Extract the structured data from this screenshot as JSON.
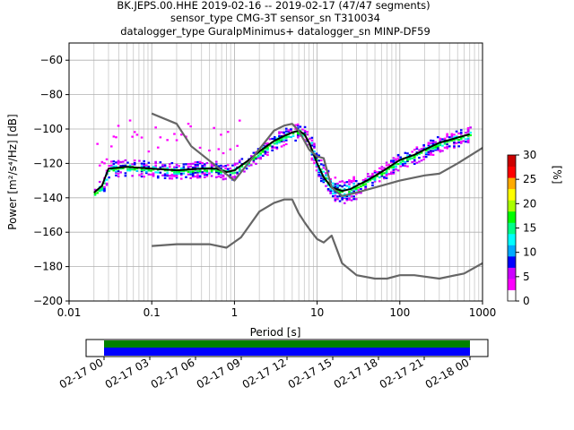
{
  "title": {
    "line1": "BK.JEPS.00.HHE   2019-02-16 -- 2019-02-17  (47/47 segments)",
    "line2": "sensor_type CMG-3T sensor_sn T310034",
    "line3": "datalogger_type GuralpMinimus+ datalogger_sn MINP-DF59"
  },
  "chart_data": {
    "type": "heatmap",
    "xlabel": "Period [s]",
    "ylabel": "Power [m²/s⁴/Hz] [dB]",
    "xscale": "log",
    "xlim": [
      0.01,
      1000
    ],
    "ylim": [
      -200,
      -50
    ],
    "xticks": [
      "0.01",
      "0.1",
      "1",
      "10",
      "100",
      "1000"
    ],
    "yticks": [
      "−60",
      "−80",
      "−100",
      "−120",
      "−140",
      "−160",
      "−180",
      "−200"
    ],
    "grid": true,
    "colorbar": {
      "label": "[%]",
      "ticks": [
        "0",
        "5",
        "10",
        "15",
        "20",
        "25",
        "30"
      ],
      "range": [
        0,
        30
      ],
      "colormap": [
        "#ffffff",
        "#ff00ff",
        "#0000ff",
        "#00ffff",
        "#00ff00",
        "#ffff00",
        "#ff0000"
      ]
    },
    "series": [
      {
        "name": "",
        "color": "#000000",
        "x": [
          0.02,
          0.025,
          0.03,
          0.05,
          0.1,
          0.2,
          0.4,
          0.6,
          0.8,
          1,
          1.5,
          2,
          3,
          4,
          5,
          6,
          7,
          8,
          10,
          12,
          15,
          20,
          25,
          30,
          40,
          60,
          100,
          150,
          200,
          300,
          500,
          700
        ],
        "values": [
          -137,
          -133,
          -123,
          -122,
          -123,
          -124,
          -123,
          -123,
          -125,
          -124,
          -118,
          -113,
          -107,
          -104,
          -102,
          -101,
          -103,
          -108,
          -120,
          -128,
          -134,
          -136,
          -135,
          -133,
          -130,
          -125,
          -118,
          -115,
          -112,
          -108,
          -105,
          -103
        ]
      },
      {
        "name": "",
        "color": "#666666",
        "x": [
          0.1,
          0.2,
          0.3,
          1,
          3,
          4,
          5,
          6,
          8,
          10,
          12,
          15,
          20,
          30,
          50,
          100,
          200,
          300,
          500,
          1000
        ],
        "values": [
          -91,
          -97,
          -110,
          -130,
          -101,
          -98,
          -97,
          -101,
          -112,
          -116,
          -117,
          -134,
          -139,
          -137,
          -134,
          -130,
          -127,
          -126,
          -120,
          -111
        ]
      },
      {
        "name": "",
        "color": "#666666",
        "x": [
          0.1,
          0.2,
          0.5,
          0.8,
          1.2,
          2,
          3,
          4,
          5,
          6,
          7,
          8,
          10,
          12,
          15,
          20,
          30,
          50,
          70,
          100,
          150,
          300,
          600,
          1000
        ],
        "values": [
          -168,
          -167,
          -167,
          -169,
          -163,
          -148,
          -143,
          -141,
          -141,
          -149,
          -154,
          -158,
          -164,
          -166,
          -162,
          -178,
          -185,
          -187,
          -187,
          -185,
          -185,
          -187,
          -184,
          -178
        ]
      }
    ]
  },
  "timeline": {
    "ticks": [
      "02-17 00",
      "02-17 03",
      "02-17 06",
      "02-17 09",
      "02-17 12",
      "02-17 15",
      "02-17 18",
      "02-17 21",
      "02-18 00"
    ],
    "band_colors": [
      "#008000",
      "#0000ff"
    ]
  }
}
